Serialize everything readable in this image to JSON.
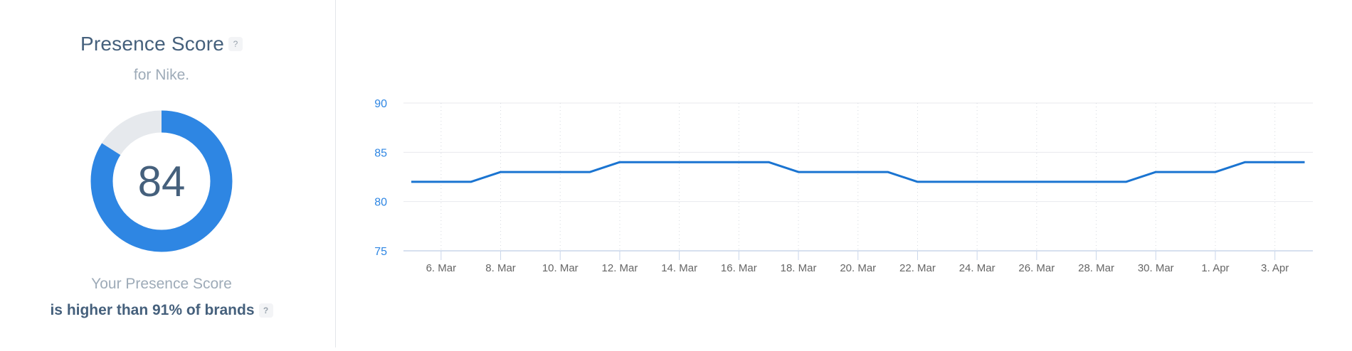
{
  "panel": {
    "title": "Presence Score",
    "help_glyph": "?",
    "subtitle": "for Nike.",
    "score": "84",
    "score_percent": 84,
    "caption_line1": "Your Presence Score",
    "caption_line2": "is higher than 91% of brands",
    "colors": {
      "accent": "#2e86e3",
      "track": "#e6e9ed",
      "text_dark": "#45607c",
      "text_muted": "#9eabb8"
    }
  },
  "chart_data": {
    "type": "line",
    "title": "",
    "xlabel": "",
    "ylabel": "",
    "ylim": [
      75,
      90
    ],
    "yticks": [
      75,
      80,
      85,
      90
    ],
    "grid": {
      "horizontal": true,
      "vertical": "dotted"
    },
    "legend": null,
    "x": [
      "5. Mar",
      "6. Mar",
      "7. Mar",
      "8. Mar",
      "9. Mar",
      "10. Mar",
      "11. Mar",
      "12. Mar",
      "13. Mar",
      "14. Mar",
      "15. Mar",
      "16. Mar",
      "17. Mar",
      "18. Mar",
      "19. Mar",
      "20. Mar",
      "21. Mar",
      "22. Mar",
      "23. Mar",
      "24. Mar",
      "25. Mar",
      "26. Mar",
      "27. Mar",
      "28. Mar",
      "29. Mar",
      "30. Mar",
      "31. Mar",
      "1. Apr",
      "2. Apr",
      "3. Apr",
      "4. Apr"
    ],
    "xtick_labels": [
      "6. Mar",
      "8. Mar",
      "10. Mar",
      "12. Mar",
      "14. Mar",
      "16. Mar",
      "18. Mar",
      "20. Mar",
      "22. Mar",
      "24. Mar",
      "26. Mar",
      "28. Mar",
      "30. Mar",
      "1. Apr",
      "3. Apr"
    ],
    "series": [
      {
        "name": "Presence Score",
        "color": "#1a74d1",
        "values": [
          82,
          82,
          82,
          83,
          83,
          83,
          83,
          84,
          84,
          84,
          84,
          84,
          84,
          83,
          83,
          83,
          83,
          82,
          82,
          82,
          82,
          82,
          82,
          82,
          82,
          83,
          83,
          83,
          84,
          84,
          84
        ]
      }
    ],
    "colors": {
      "line": "#1a74d1",
      "ytick": "#2e86e3",
      "xtick": "#666666",
      "grid": "#e8eaee",
      "axis": "#c9d6ea"
    }
  }
}
